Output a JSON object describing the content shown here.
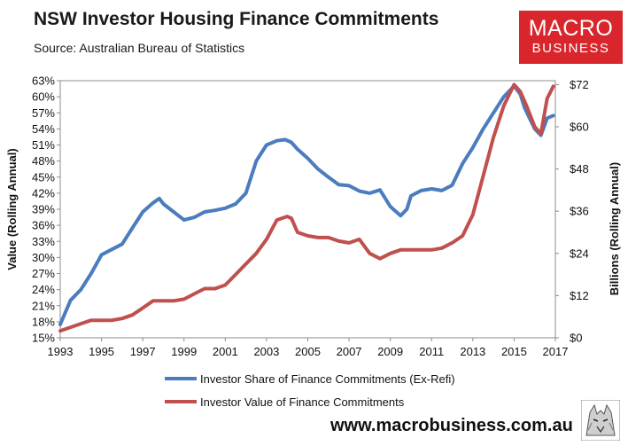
{
  "header": {
    "title": "NSW Investor Housing Finance Commitments",
    "source": "Source: Australian Bureau of Statistics"
  },
  "logo": {
    "line1": "MACRO",
    "line2": "BUSINESS"
  },
  "footer": {
    "url": "www.macrobusiness.com.au"
  },
  "colors": {
    "series_blue": "#4a7cbf",
    "series_red": "#c0504d",
    "logo_red": "#d8262c"
  },
  "chart_data": {
    "type": "line",
    "title": "NSW Investor Housing Finance Commitments",
    "xlim": [
      1993,
      2017
    ],
    "x_ticks": [
      "1993",
      "1995",
      "1997",
      "1999",
      "2001",
      "2003",
      "2005",
      "2007",
      "2009",
      "2011",
      "2013",
      "2015",
      "2017"
    ],
    "left_axis": {
      "label": "Value (Rolling Annual)",
      "ylim": [
        15,
        63
      ],
      "ticks": [
        "15%",
        "18%",
        "21%",
        "24%",
        "27%",
        "30%",
        "33%",
        "36%",
        "39%",
        "42%",
        "45%",
        "48%",
        "51%",
        "54%",
        "57%",
        "60%",
        "63%"
      ]
    },
    "right_axis": {
      "label": "Billions (Rolling Annual)",
      "ylim": [
        0,
        73.1
      ],
      "ticks": [
        "$0",
        "$12",
        "$24",
        "$36",
        "$48",
        "$60",
        "$72"
      ]
    },
    "legend_position": "bottom",
    "series": [
      {
        "name": "Investor Share of Finance Commitments (Ex-Refi)",
        "axis": "left",
        "color": "#4a7cbf",
        "x": [
          1993.0,
          1993.5,
          1994.0,
          1994.5,
          1995.0,
          1995.5,
          1996.0,
          1996.5,
          1997.0,
          1997.5,
          1997.8,
          1998.0,
          1998.5,
          1999.0,
          1999.5,
          2000.0,
          2000.5,
          2001.0,
          2001.5,
          2002.0,
          2002.5,
          2003.0,
          2003.5,
          2003.9,
          2004.2,
          2004.5,
          2005.0,
          2005.5,
          2006.0,
          2006.5,
          2007.0,
          2007.5,
          2008.0,
          2008.5,
          2009.0,
          2009.5,
          2009.8,
          2010.0,
          2010.5,
          2011.0,
          2011.5,
          2012.0,
          2012.5,
          2013.0,
          2013.5,
          2014.0,
          2014.5,
          2015.0,
          2015.3,
          2015.5,
          2016.0,
          2016.3,
          2016.6,
          2016.9
        ],
        "y": [
          17.5,
          22.0,
          24.0,
          27.0,
          30.5,
          31.5,
          32.5,
          35.5,
          38.5,
          40.2,
          41.0,
          40.0,
          38.5,
          37.0,
          37.5,
          38.5,
          38.8,
          39.2,
          40.0,
          42.0,
          48.0,
          51.0,
          51.8,
          52.0,
          51.5,
          50.2,
          48.5,
          46.5,
          45.0,
          43.6,
          43.4,
          42.4,
          42.0,
          42.6,
          39.5,
          37.8,
          39.0,
          41.5,
          42.5,
          42.8,
          42.5,
          43.5,
          47.5,
          50.5,
          54.0,
          57.0,
          60.0,
          62.0,
          60.5,
          58.0,
          54.0,
          52.8,
          56.0,
          56.5
        ]
      },
      {
        "name": "Investor Value of Finance Commitments",
        "axis": "right",
        "color": "#c0504d",
        "x": [
          1993.0,
          1993.5,
          1994.0,
          1994.5,
          1995.0,
          1995.5,
          1996.0,
          1996.5,
          1997.0,
          1997.5,
          1998.0,
          1998.5,
          1999.0,
          1999.5,
          2000.0,
          2000.5,
          2001.0,
          2001.5,
          2002.0,
          2002.5,
          2003.0,
          2003.5,
          2004.0,
          2004.2,
          2004.5,
          2005.0,
          2005.5,
          2006.0,
          2006.5,
          2007.0,
          2007.5,
          2008.0,
          2008.5,
          2009.0,
          2009.5,
          2010.0,
          2010.5,
          2011.0,
          2011.5,
          2012.0,
          2012.5,
          2013.0,
          2013.5,
          2014.0,
          2014.5,
          2015.0,
          2015.3,
          2015.6,
          2016.0,
          2016.3,
          2016.6,
          2016.9
        ],
        "y": [
          2.0,
          3.0,
          4.0,
          5.0,
          5.0,
          5.0,
          5.5,
          6.5,
          8.5,
          10.5,
          10.5,
          10.5,
          11.0,
          12.5,
          14.0,
          14.0,
          15.0,
          18.0,
          21.0,
          24.0,
          28.0,
          33.5,
          34.5,
          34.0,
          30.0,
          29.0,
          28.5,
          28.5,
          27.5,
          27.0,
          28.0,
          24.0,
          22.5,
          24.0,
          25.0,
          25.0,
          25.0,
          25.0,
          25.5,
          27.0,
          29.0,
          35.0,
          46.0,
          57.0,
          66.0,
          72.0,
          70.0,
          66.0,
          60.0,
          58.0,
          68.0,
          71.5
        ]
      }
    ]
  }
}
